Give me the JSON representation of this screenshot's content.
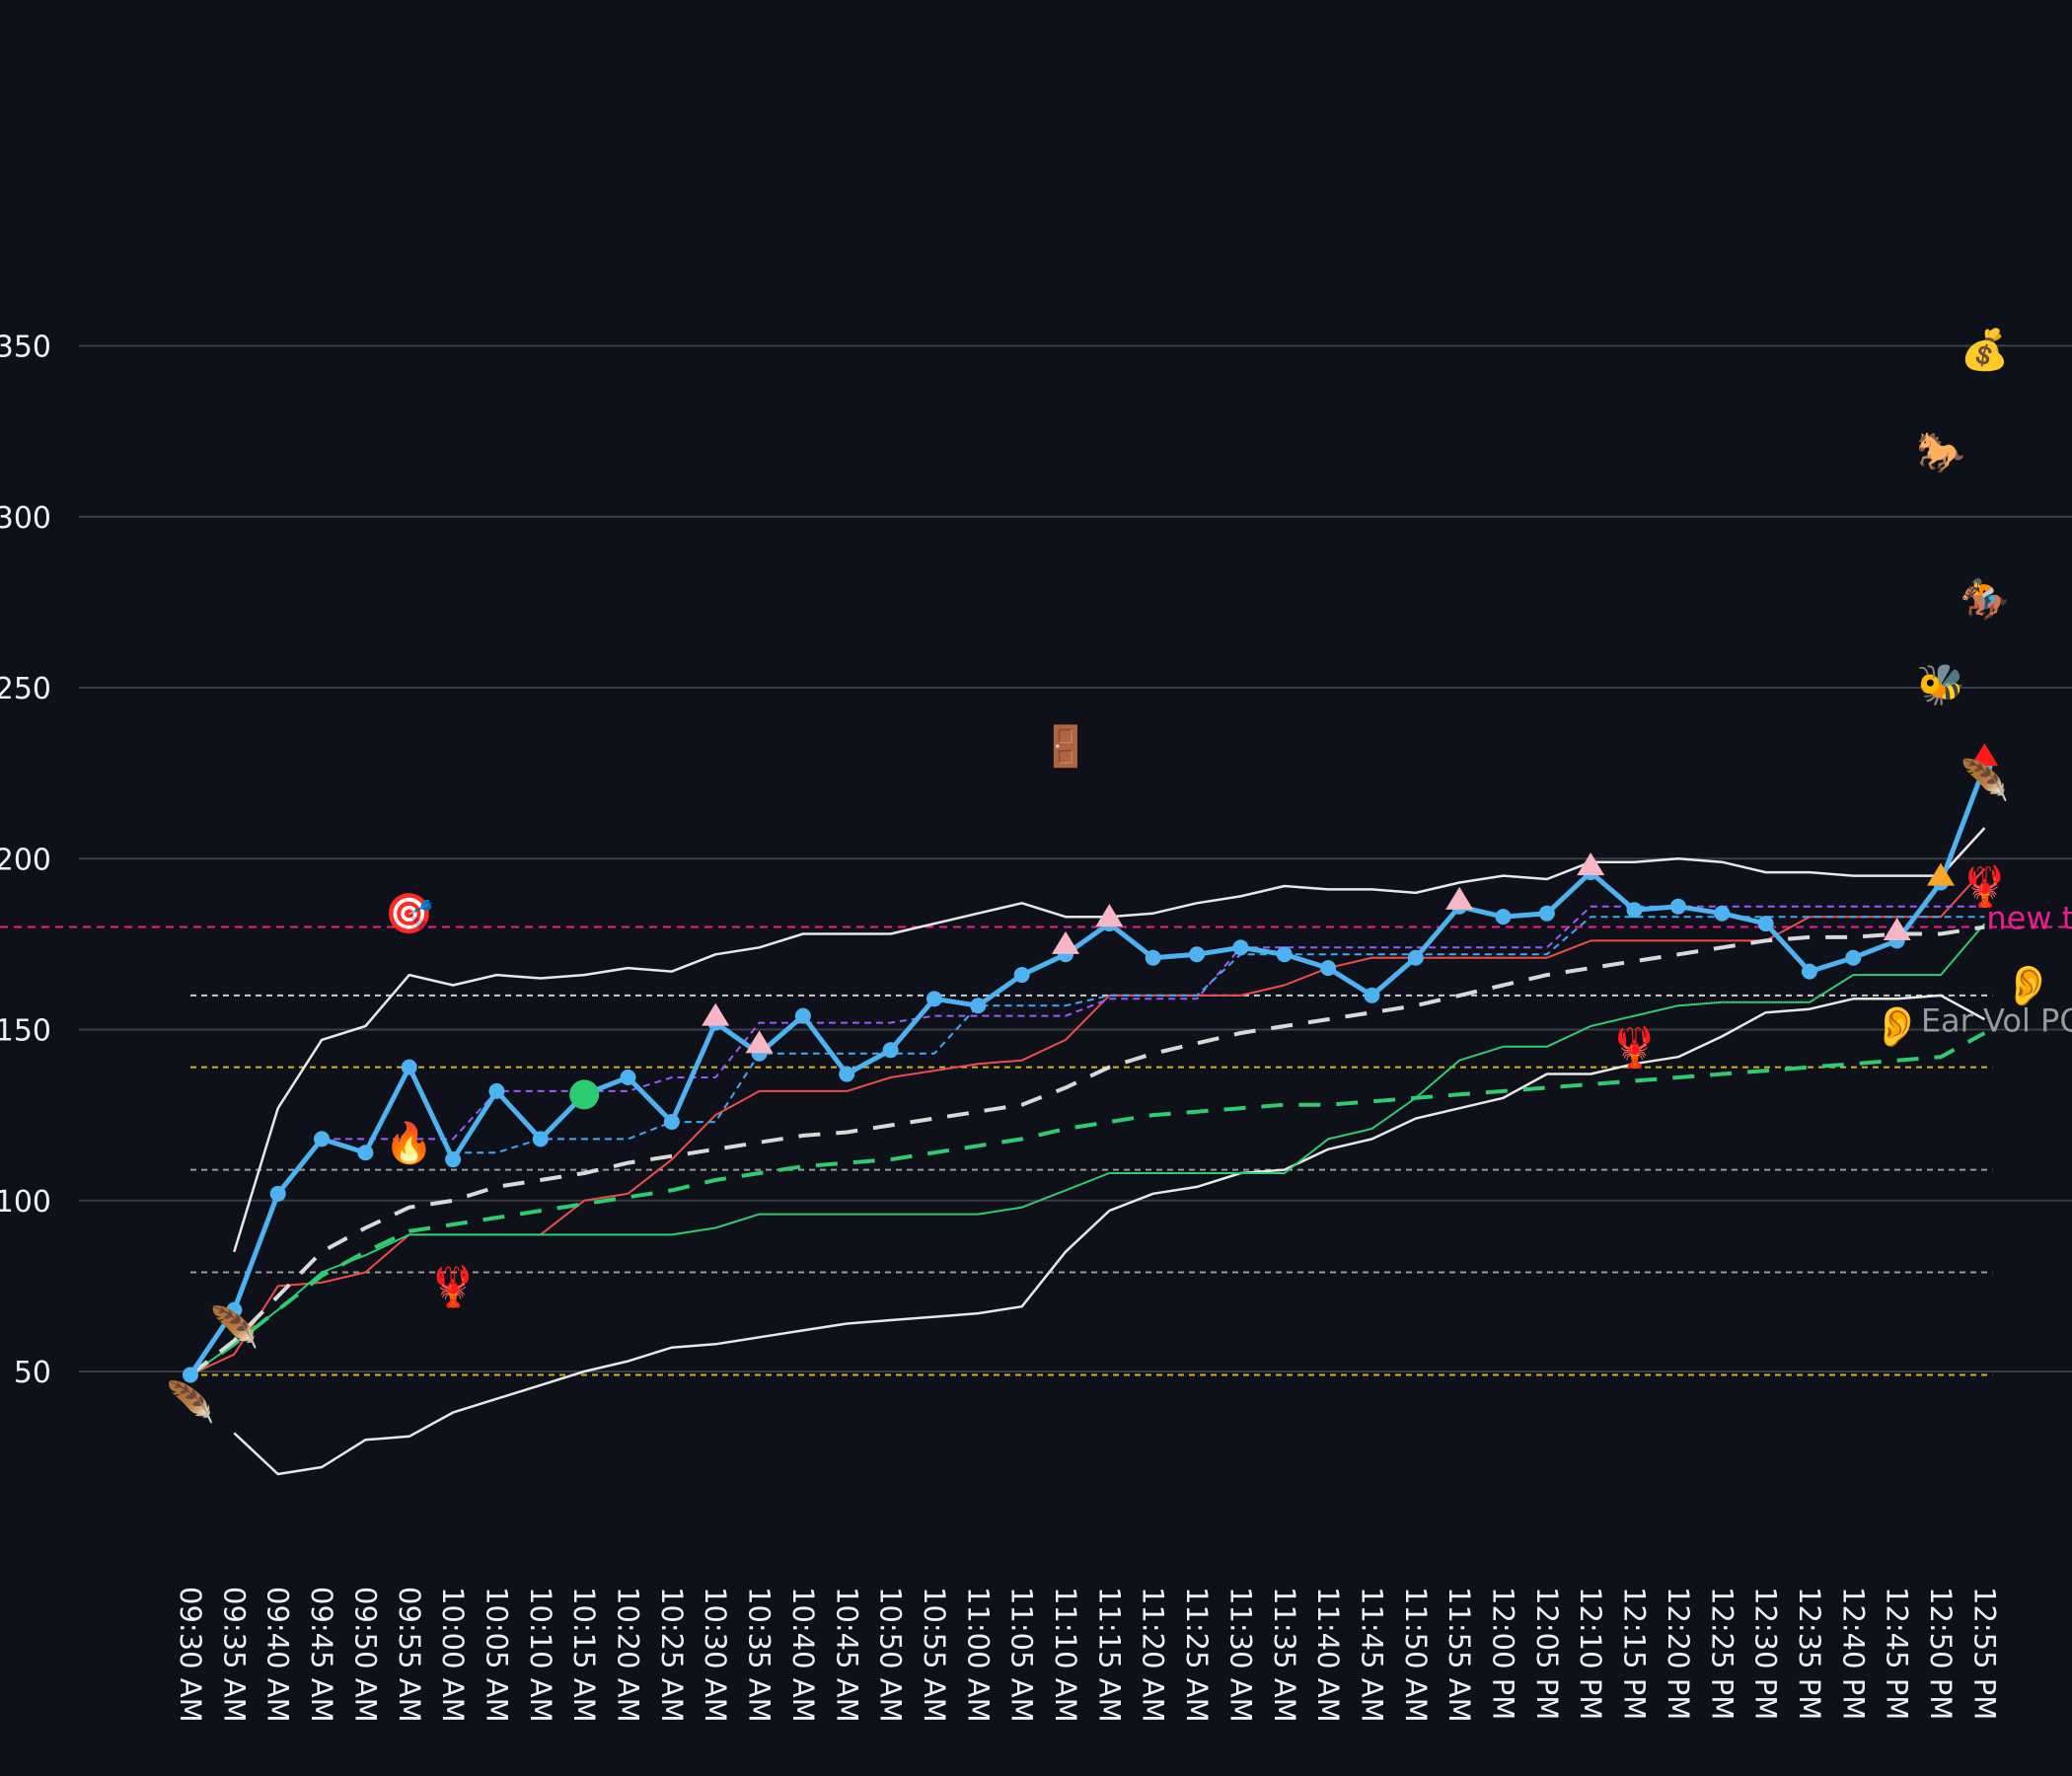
{
  "chart_data": {
    "type": "line",
    "title": "",
    "xlabel": "",
    "ylabel": "",
    "ylim": [
      0,
      400
    ],
    "yticks": [
      50,
      100,
      150,
      200,
      250,
      300,
      350
    ],
    "grid": "horizontal",
    "legend": "none",
    "categories": [
      "09:30 AM",
      "09:35 AM",
      "09:40 AM",
      "09:45 AM",
      "09:50 AM",
      "09:55 AM",
      "10:00 AM",
      "10:05 AM",
      "10:10 AM",
      "10:15 AM",
      "10:20 AM",
      "10:25 AM",
      "10:30 AM",
      "10:35 AM",
      "10:40 AM",
      "10:45 AM",
      "10:50 AM",
      "10:55 AM",
      "11:00 AM",
      "11:05 AM",
      "11:10 AM",
      "11:15 AM",
      "11:20 AM",
      "11:25 AM",
      "11:30 AM",
      "11:35 AM",
      "11:40 AM",
      "11:45 AM",
      "11:50 AM",
      "11:55 AM",
      "12:00 PM",
      "12:05 PM",
      "12:10 PM",
      "12:15 PM",
      "12:20 PM",
      "12:25 PM",
      "12:30 PM",
      "12:35 PM",
      "12:40 PM",
      "12:45 PM",
      "12:50 PM",
      "12:55 PM"
    ],
    "series": [
      {
        "key": "upper_band",
        "color": "#e8e8e8",
        "width": 2.5,
        "dash": "",
        "values": [
          null,
          85,
          127,
          147,
          151,
          166,
          163,
          166,
          165,
          166,
          168,
          167,
          172,
          174,
          178,
          178,
          178,
          181,
          184,
          187,
          183,
          183,
          184,
          187,
          189,
          192,
          191,
          191,
          190,
          193,
          195,
          194,
          199,
          199,
          200,
          199,
          196,
          196,
          195,
          195,
          195,
          209
        ]
      },
      {
        "key": "lower_band",
        "color": "#e8e8e8",
        "width": 2.5,
        "dash": "",
        "values": [
          null,
          32,
          20,
          22,
          30,
          31,
          38,
          42,
          46,
          50,
          53,
          57,
          58,
          60,
          62,
          64,
          65,
          66,
          67,
          69,
          85,
          97,
          102,
          104,
          108,
          109,
          115,
          118,
          124,
          127,
          130,
          137,
          137,
          140,
          142,
          148,
          155,
          156,
          159,
          159,
          160,
          153
        ]
      },
      {
        "key": "red_line",
        "color": "#ef4b4b",
        "width": 2,
        "dash": "",
        "values": [
          49,
          55,
          75,
          76,
          79,
          90,
          90,
          90,
          90,
          100,
          102,
          112,
          125,
          132,
          132,
          132,
          136,
          138,
          140,
          141,
          147,
          160,
          160,
          160,
          160,
          163,
          168,
          171,
          171,
          171,
          171,
          171,
          176,
          176,
          176,
          176,
          176,
          183,
          183,
          183,
          183,
          197
        ]
      },
      {
        "key": "green_line",
        "color": "#2ecc71",
        "width": 2,
        "dash": "",
        "values": [
          49,
          58,
          68,
          79,
          84,
          90,
          90,
          90,
          90,
          90,
          90,
          90,
          92,
          96,
          96,
          96,
          96,
          96,
          96,
          98,
          103,
          108,
          108,
          108,
          108,
          108,
          118,
          121,
          130,
          141,
          145,
          145,
          151,
          154,
          157,
          158,
          158,
          158,
          166,
          166,
          166,
          181
        ]
      },
      {
        "key": "purple_dashed",
        "color": "#9b59ff",
        "width": 2,
        "dash": "7,5",
        "values": [
          49,
          null,
          null,
          118,
          118,
          118,
          118,
          132,
          132,
          132,
          132,
          136,
          136,
          152,
          152,
          152,
          152,
          154,
          154,
          154,
          154,
          159,
          159,
          159,
          174,
          174,
          174,
          174,
          174,
          174,
          174,
          174,
          186,
          186,
          186,
          186,
          186,
          186,
          186,
          186,
          186,
          186
        ]
      },
      {
        "key": "blue_dashed",
        "color": "#3fa9f5",
        "width": 2,
        "dash": "7,5",
        "values": [
          49,
          null,
          null,
          null,
          null,
          null,
          114,
          114,
          118,
          118,
          118,
          123,
          123,
          143,
          143,
          143,
          143,
          143,
          157,
          157,
          157,
          160,
          160,
          160,
          172,
          172,
          172,
          172,
          172,
          172,
          172,
          172,
          183,
          183,
          183,
          183,
          183,
          183,
          183,
          183,
          183,
          183
        ]
      },
      {
        "key": "green_dashed",
        "color": "#2ecc71",
        "width": 4,
        "dash": "22,16",
        "values": [
          49,
          58,
          68,
          78,
          85,
          91,
          93,
          95,
          97,
          99,
          101,
          103,
          106,
          108,
          110,
          111,
          112,
          114,
          116,
          118,
          121,
          123,
          125,
          126,
          127,
          128,
          128,
          129,
          130,
          131,
          132,
          133,
          134,
          135,
          136,
          137,
          138,
          139,
          140,
          141,
          142,
          149
        ]
      },
      {
        "key": "white_dashed",
        "color": "#d9d9d9",
        "width": 4,
        "dash": "22,16",
        "values": [
          49,
          59,
          72,
          85,
          92,
          98,
          100,
          104,
          106,
          108,
          111,
          113,
          115,
          117,
          119,
          120,
          122,
          124,
          126,
          128,
          133,
          139,
          143,
          146,
          149,
          151,
          153,
          155,
          157,
          160,
          163,
          166,
          168,
          170,
          172,
          174,
          176,
          177,
          177,
          178,
          178,
          180
        ]
      },
      {
        "key": "price",
        "color": "#4db2ef",
        "width": 5,
        "dash": "",
        "values": [
          49,
          68,
          102,
          118,
          114,
          139,
          112,
          132,
          118,
          131,
          136,
          123,
          152,
          143,
          154,
          137,
          144,
          159,
          157,
          166,
          172,
          181,
          171,
          172,
          174,
          172,
          168,
          160,
          171,
          186,
          183,
          184,
          196,
          185,
          186,
          184,
          181,
          167,
          171,
          176,
          193,
          227
        ]
      }
    ],
    "hlines": [
      {
        "y": 180,
        "color": "#e91e8c",
        "dash": "8,6"
      },
      {
        "y": 160,
        "color": "#cfcfcf",
        "dash": "6,5"
      },
      {
        "y": 139,
        "color": "#d4b01e",
        "dash": "6,5"
      },
      {
        "y": 109,
        "color": "#9a9a9a",
        "dash": "6,5"
      },
      {
        "y": 79,
        "color": "#9a9a9a",
        "dash": "6,5"
      },
      {
        "y": 49,
        "color": "#d4b01e",
        "dash": "6,5"
      }
    ],
    "triangle_markers": [
      {
        "i": 12,
        "v": 154,
        "color": "#f7b6c6"
      },
      {
        "i": 13,
        "v": 146,
        "color": "#f7b6c6"
      },
      {
        "i": 20,
        "v": 175,
        "color": "#f7b6c6"
      },
      {
        "i": 21,
        "v": 183,
        "color": "#f7b6c6"
      },
      {
        "i": 29,
        "v": 188,
        "color": "#f7b6c6"
      },
      {
        "i": 32,
        "v": 198,
        "color": "#f7b6c6"
      },
      {
        "i": 39,
        "v": 179,
        "color": "#f7b6c6"
      },
      {
        "i": 40,
        "v": 195,
        "color": "#f5a623"
      },
      {
        "i": 41,
        "v": 230,
        "color": "#ff1a1a"
      }
    ],
    "dot_markers": [
      {
        "i": 9,
        "v": 131,
        "color": "#2ecc71"
      }
    ],
    "emoji_markers": [
      {
        "i": 5,
        "v": 184,
        "glyph": "🎯"
      },
      {
        "i": 5,
        "v": 117,
        "glyph": "🔥"
      },
      {
        "i": 6,
        "v": 75,
        "glyph": "🦞"
      },
      {
        "i": 1,
        "v": 63,
        "glyph": "🪶"
      },
      {
        "i": 0,
        "v": 41,
        "glyph": "🪶"
      },
      {
        "i": 20,
        "v": 233,
        "glyph": "🚪"
      },
      {
        "i": 33,
        "v": 145,
        "glyph": "🦞"
      },
      {
        "i": 41,
        "v": 349,
        "glyph": "💰"
      },
      {
        "i": 40,
        "v": 319,
        "glyph": "🐎"
      },
      {
        "i": 41,
        "v": 276,
        "glyph": "🏇"
      },
      {
        "i": 40,
        "v": 251,
        "glyph": "🐝"
      },
      {
        "i": 41,
        "v": 223,
        "glyph": "🪶"
      },
      {
        "i": 41,
        "v": 192,
        "glyph": "🦞"
      },
      {
        "i": 42,
        "v": 163,
        "glyph": "👂"
      },
      {
        "i": 39,
        "v": 151,
        "glyph": "👂"
      }
    ],
    "text_annotations": [
      {
        "i": 41,
        "v": 180,
        "text": "new text",
        "color": "#e91e8c"
      },
      {
        "i": 39.5,
        "v": 150,
        "text": "Ear Vol POC",
        "color": "#9a9a9a"
      }
    ]
  }
}
